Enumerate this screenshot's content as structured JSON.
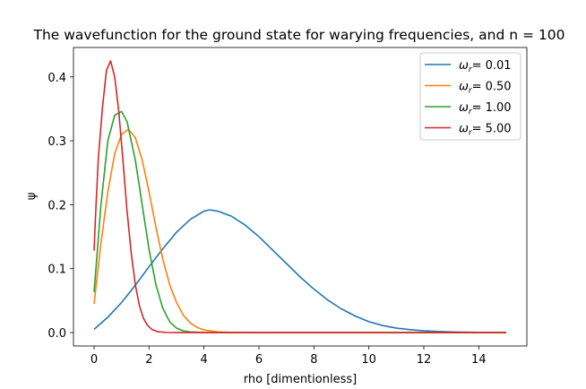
{
  "chart_data": {
    "type": "line",
    "title": "The wavefunction for the ground state for warying frequencies, and n = 100",
    "xlabel": "rho [dimentionless]",
    "ylabel": "ψ",
    "xlim": [
      -0.75,
      15.75
    ],
    "ylim": [
      -0.021,
      0.446
    ],
    "xticks": [
      0,
      2,
      4,
      6,
      8,
      10,
      12,
      14
    ],
    "yticks": [
      0.0,
      0.1,
      0.2,
      0.3,
      0.4
    ],
    "ytick_labels": [
      "0.0",
      "0.1",
      "0.2",
      "0.3",
      "0.4"
    ],
    "grid": false,
    "legend_position": "top-right",
    "legend_prefix": "ω",
    "legend_subscript": "r",
    "series": [
      {
        "name": "= 0.01",
        "color": "#1f77b4",
        "x": [
          0,
          0.5,
          1,
          1.5,
          2,
          2.5,
          3,
          3.5,
          4,
          4.2,
          4.5,
          5,
          5.5,
          6,
          6.5,
          7,
          7.5,
          8,
          8.5,
          9,
          9.5,
          10,
          10.5,
          11,
          11.5,
          12,
          12.5,
          13,
          13.5,
          14,
          14.5,
          15
        ],
        "y": [
          0.005,
          0.024,
          0.047,
          0.074,
          0.103,
          0.131,
          0.157,
          0.177,
          0.19,
          0.192,
          0.19,
          0.182,
          0.168,
          0.15,
          0.129,
          0.108,
          0.087,
          0.068,
          0.051,
          0.037,
          0.026,
          0.017,
          0.011,
          0.007,
          0.0045,
          0.0028,
          0.0017,
          0.001,
          0.0006,
          0.0003,
          0.0002,
          0.0001
        ]
      },
      {
        "name": "= 0.50",
        "color": "#ff7f0e",
        "x": [
          0,
          0.25,
          0.5,
          0.75,
          1.0,
          1.25,
          1.5,
          1.75,
          2.0,
          2.25,
          2.5,
          2.75,
          3.0,
          3.25,
          3.5,
          3.75,
          4.0,
          4.5,
          5.0,
          6.0,
          8.0,
          10.0,
          12.0,
          15.0
        ],
        "y": [
          0.045,
          0.14,
          0.22,
          0.28,
          0.31,
          0.318,
          0.305,
          0.27,
          0.22,
          0.165,
          0.115,
          0.075,
          0.047,
          0.027,
          0.015,
          0.008,
          0.004,
          0.001,
          0.0003,
          0.0,
          0.0,
          0.0,
          0.0,
          0.0
        ]
      },
      {
        "name": "= 1.00",
        "color": "#2ca02c",
        "x": [
          0,
          0.25,
          0.5,
          0.75,
          1.0,
          1.2,
          1.5,
          1.75,
          2.0,
          2.25,
          2.5,
          2.75,
          3.0,
          3.25,
          3.5,
          4.0,
          5.0,
          6.0,
          8.0,
          10.0,
          15.0
        ],
        "y": [
          0.063,
          0.2,
          0.3,
          0.34,
          0.346,
          0.33,
          0.27,
          0.2,
          0.13,
          0.075,
          0.038,
          0.017,
          0.007,
          0.0025,
          0.001,
          0.0001,
          0.0,
          0.0,
          0.0,
          0.0,
          0.0
        ]
      },
      {
        "name": "= 5.00",
        "color": "#d62728",
        "x": [
          0,
          0.05,
          0.15,
          0.3,
          0.45,
          0.6,
          0.75,
          0.9,
          1.05,
          1.2,
          1.35,
          1.5,
          1.65,
          1.8,
          1.95,
          2.1,
          2.3,
          2.6,
          3.0,
          4.0,
          6.0,
          10.0,
          15.0
        ],
        "y": [
          0.128,
          0.18,
          0.27,
          0.35,
          0.41,
          0.425,
          0.4,
          0.345,
          0.27,
          0.19,
          0.125,
          0.075,
          0.042,
          0.022,
          0.011,
          0.005,
          0.0015,
          0.0002,
          0.0,
          0.0,
          0.0,
          0.0,
          0.0
        ]
      }
    ]
  }
}
